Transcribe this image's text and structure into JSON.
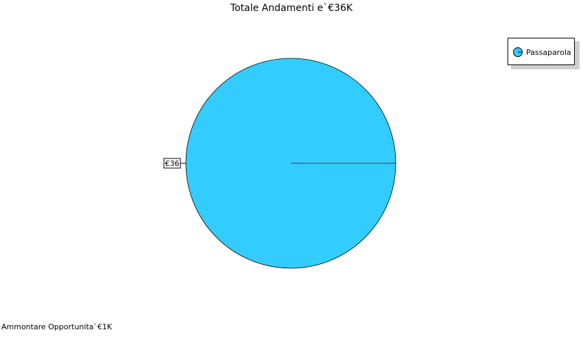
{
  "chart_data": {
    "type": "pie",
    "title": "Totale Andamenti e`€36K",
    "categories": [
      "Passaparola"
    ],
    "values": [
      36
    ],
    "data_labels": [
      "€36"
    ],
    "colors": [
      "#33ccff"
    ],
    "legend": {
      "placement": "top-right",
      "entries": [
        "Passaparola"
      ]
    }
  },
  "footer": {
    "text": "Ammontare Opportunita`€1K"
  }
}
